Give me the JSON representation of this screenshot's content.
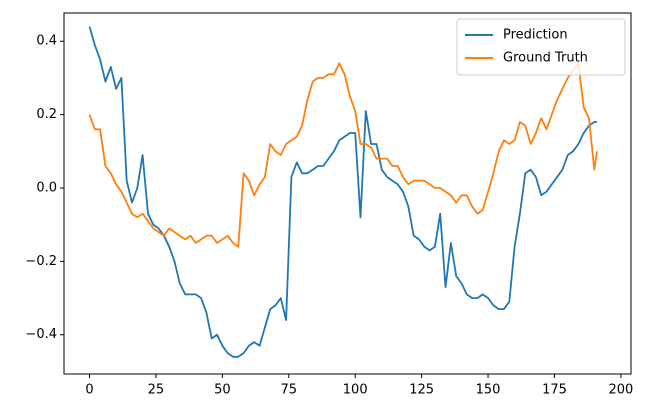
{
  "chart_data": {
    "type": "line",
    "x": [
      0,
      2,
      4,
      6,
      8,
      10,
      12,
      14,
      16,
      18,
      20,
      22,
      24,
      26,
      28,
      30,
      32,
      34,
      36,
      38,
      40,
      42,
      44,
      46,
      48,
      50,
      52,
      54,
      56,
      58,
      60,
      62,
      64,
      66,
      68,
      70,
      72,
      74,
      76,
      78,
      80,
      82,
      84,
      86,
      88,
      90,
      92,
      94,
      96,
      98,
      100,
      102,
      104,
      106,
      108,
      110,
      112,
      114,
      116,
      118,
      120,
      122,
      124,
      126,
      128,
      130,
      132,
      134,
      136,
      138,
      140,
      142,
      144,
      146,
      148,
      150,
      152,
      154,
      156,
      158,
      160,
      162,
      164,
      166,
      168,
      170,
      172,
      174,
      176,
      178,
      180,
      182,
      184,
      186,
      188,
      190,
      191
    ],
    "series": [
      {
        "name": "Prediction",
        "color": "#1f77b4",
        "values": [
          0.44,
          0.39,
          0.35,
          0.29,
          0.33,
          0.27,
          0.3,
          0.02,
          -0.04,
          0.0,
          0.09,
          -0.07,
          -0.1,
          -0.11,
          -0.13,
          -0.16,
          -0.2,
          -0.26,
          -0.29,
          -0.29,
          -0.29,
          -0.3,
          -0.34,
          -0.41,
          -0.4,
          -0.43,
          -0.45,
          -0.46,
          -0.46,
          -0.45,
          -0.43,
          -0.42,
          -0.43,
          -0.38,
          -0.33,
          -0.32,
          -0.3,
          -0.36,
          0.03,
          0.07,
          0.04,
          0.04,
          0.05,
          0.06,
          0.06,
          0.08,
          0.1,
          0.13,
          0.14,
          0.15,
          0.15,
          -0.08,
          0.21,
          0.12,
          0.12,
          0.05,
          0.03,
          0.02,
          0.01,
          -0.01,
          -0.05,
          -0.13,
          -0.14,
          -0.16,
          -0.17,
          -0.16,
          -0.07,
          -0.27,
          -0.15,
          -0.24,
          -0.26,
          -0.29,
          -0.3,
          -0.3,
          -0.29,
          -0.3,
          -0.32,
          -0.33,
          -0.33,
          -0.31,
          -0.16,
          -0.07,
          0.04,
          0.05,
          0.03,
          -0.02,
          -0.01,
          0.01,
          0.03,
          0.05,
          0.09,
          0.1,
          0.12,
          0.15,
          0.17,
          0.18,
          0.18
        ]
      },
      {
        "name": "Ground Truth",
        "color": "#ff7f0e",
        "values": [
          0.2,
          0.16,
          0.16,
          0.06,
          0.04,
          0.01,
          -0.01,
          -0.04,
          -0.07,
          -0.08,
          -0.07,
          -0.09,
          -0.11,
          -0.12,
          -0.13,
          -0.11,
          -0.12,
          -0.13,
          -0.14,
          -0.13,
          -0.15,
          -0.14,
          -0.13,
          -0.13,
          -0.15,
          -0.14,
          -0.13,
          -0.15,
          -0.16,
          0.04,
          0.02,
          -0.02,
          0.01,
          0.03,
          0.12,
          0.1,
          0.09,
          0.12,
          0.13,
          0.14,
          0.17,
          0.24,
          0.29,
          0.3,
          0.3,
          0.31,
          0.31,
          0.34,
          0.31,
          0.25,
          0.21,
          0.12,
          0.12,
          0.11,
          0.08,
          0.08,
          0.08,
          0.06,
          0.06,
          0.03,
          0.01,
          0.02,
          0.02,
          0.02,
          0.01,
          0.0,
          0.0,
          -0.01,
          -0.02,
          -0.04,
          -0.02,
          -0.02,
          -0.05,
          -0.07,
          -0.06,
          -0.01,
          0.04,
          0.1,
          0.13,
          0.12,
          0.13,
          0.18,
          0.17,
          0.12,
          0.15,
          0.19,
          0.16,
          0.2,
          0.24,
          0.27,
          0.3,
          0.32,
          0.34,
          0.22,
          0.19,
          0.05,
          0.1
        ]
      }
    ],
    "xlim": [
      -9.6,
      203.8
    ],
    "ylim": [
      -0.507,
      0.477
    ],
    "xticks": [
      0,
      25,
      50,
      75,
      100,
      125,
      150,
      175,
      200
    ],
    "yticks": [
      {
        "value": -0.4,
        "label": "−0.4"
      },
      {
        "value": -0.2,
        "label": "−0.2"
      },
      {
        "value": 0,
        "label": "0.0"
      },
      {
        "value": 0.2,
        "label": "0.2"
      },
      {
        "value": 0.4,
        "label": "0.4"
      }
    ],
    "legend": "upper right"
  }
}
